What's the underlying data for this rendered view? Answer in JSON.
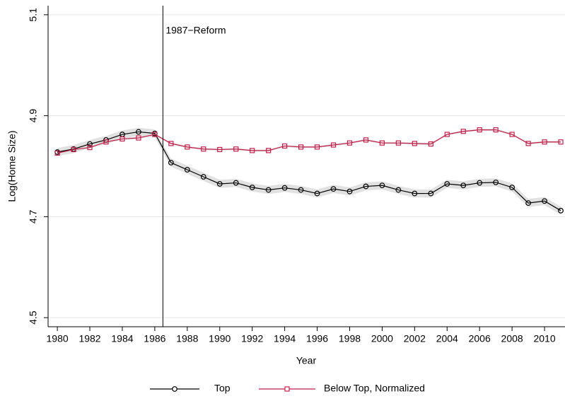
{
  "chart_data": {
    "type": "line",
    "x_label": "Year",
    "y_label": "Log(Home Size)",
    "x": [
      1980,
      1981,
      1982,
      1983,
      1984,
      1985,
      1986,
      1987,
      1988,
      1989,
      1990,
      1991,
      1992,
      1993,
      1994,
      1995,
      1996,
      1997,
      1998,
      1999,
      2000,
      2001,
      2002,
      2003,
      2004,
      2005,
      2006,
      2007,
      2008,
      2009,
      2010,
      2011
    ],
    "series": [
      {
        "name": "Top",
        "color": "#000000",
        "marker": "circle",
        "band_halfwidth": 0.008,
        "values": [
          4.828,
          4.834,
          4.844,
          4.852,
          4.863,
          4.868,
          4.865,
          4.807,
          4.793,
          4.779,
          4.765,
          4.767,
          4.758,
          4.753,
          4.757,
          4.753,
          4.746,
          4.755,
          4.75,
          4.76,
          4.762,
          4.753,
          4.746,
          4.746,
          4.765,
          4.762,
          4.767,
          4.768,
          4.758,
          4.727,
          4.731,
          4.712
        ]
      },
      {
        "name": "Below Top, Normalized",
        "color": "#c41e4a",
        "marker": "square",
        "band_halfwidth": 0.002,
        "values": [
          4.826,
          4.833,
          4.837,
          4.848,
          4.854,
          4.856,
          4.863,
          4.845,
          4.838,
          4.834,
          4.833,
          4.834,
          4.831,
          4.831,
          4.84,
          4.838,
          4.838,
          4.842,
          4.846,
          4.852,
          4.846,
          4.846,
          4.845,
          4.844,
          4.863,
          4.869,
          4.872,
          4.872,
          4.863,
          4.845,
          4.848,
          4.848
        ]
      }
    ],
    "annotation": {
      "text": "1987−Reform",
      "x": 1986.5
    },
    "xlim": [
      1979.43,
      2011.26
    ],
    "xticks": [
      1980,
      1982,
      1984,
      1986,
      1988,
      1990,
      1992,
      1994,
      1996,
      1998,
      2000,
      2002,
      2004,
      2006,
      2008,
      2010
    ],
    "ylim": [
      4.482,
      5.118
    ],
    "yticks": [
      4.5,
      4.7,
      4.9,
      5.1
    ],
    "grid": true,
    "legend_position": "bottom"
  }
}
